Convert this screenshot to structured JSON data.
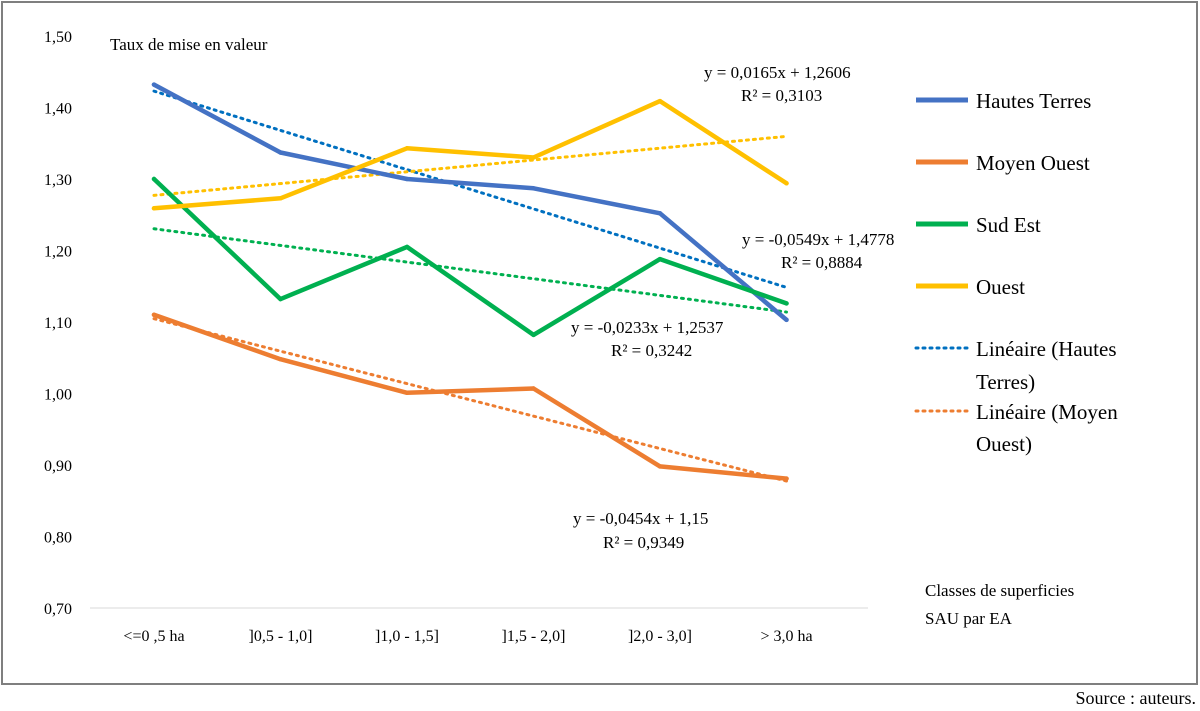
{
  "chart_data": {
    "type": "line",
    "ylabel": "Taux de mise en valeur",
    "xlabel": "Classes de superficies SAU par EA",
    "xlabel_lines": [
      "Classes de superficies",
      "SAU par EA"
    ],
    "ylim": [
      0.7,
      1.5
    ],
    "yticks": [
      "0,70",
      "0,80",
      "0,90",
      "1,00",
      "1,10",
      "1,20",
      "1,30",
      "1,40",
      "1,50"
    ],
    "ytick_values": [
      0.7,
      0.8,
      0.9,
      1.0,
      1.1,
      1.2,
      1.3,
      1.4,
      1.5
    ],
    "categories": [
      "<=0 ,5 ha",
      "]0,5 - 1,0]",
      "]1,0 - 1,5]",
      "]1,5 - 2,0]",
      "]2,0 - 3,0]",
      "> 3,0 ha"
    ],
    "grid": false,
    "legend_position": "right",
    "series": [
      {
        "name": "Hautes Terres",
        "color": "#4472C4",
        "values": [
          1.432,
          1.337,
          1.3,
          1.287,
          1.252,
          1.103
        ]
      },
      {
        "name": "Moyen Ouest",
        "color": "#ED7D31",
        "values": [
          1.11,
          1.048,
          1.001,
          1.007,
          0.898,
          0.881
        ]
      },
      {
        "name": "Sud Est",
        "color": "#00B050",
        "values": [
          1.3,
          1.132,
          1.205,
          1.082,
          1.188,
          1.126
        ]
      },
      {
        "name": "Ouest",
        "color": "#FFC000",
        "values": [
          1.259,
          1.273,
          1.343,
          1.33,
          1.409,
          1.294
        ]
      }
    ],
    "trendlines": [
      {
        "name": "Linéaire (Hautes Terres)",
        "legend_lines": [
          "Linéaire (Hautes",
          "Terres)"
        ],
        "color": "#0070C0",
        "slope": -0.0549,
        "intercept": 1.4778,
        "equation": "y = -0,0549x + 1,4778",
        "r2": "R² = 0,8884",
        "in_legend": true
      },
      {
        "name": "Linéaire (Moyen Ouest)",
        "legend_lines": [
          "Linéaire (Moyen",
          "Ouest)"
        ],
        "color": "#ED7D31",
        "slope": -0.0454,
        "intercept": 1.15,
        "equation": "y = -0,0454x + 1,15",
        "r2": "R² = 0,9349",
        "in_legend": true
      },
      {
        "name": "Linéaire (Sud Est)",
        "color": "#00B050",
        "slope": -0.0233,
        "intercept": 1.2537,
        "equation": "y = -0,0233x + 1,2537",
        "r2": "R² = 0,3242",
        "in_legend": false
      },
      {
        "name": "Linéaire (Ouest)",
        "color": "#FFC000",
        "slope": 0.0165,
        "intercept": 1.2606,
        "equation": "y = 0,0165x + 1,2606",
        "r2": "R² = 0,3103",
        "in_legend": false
      }
    ]
  },
  "source_note": "Source : auteurs."
}
